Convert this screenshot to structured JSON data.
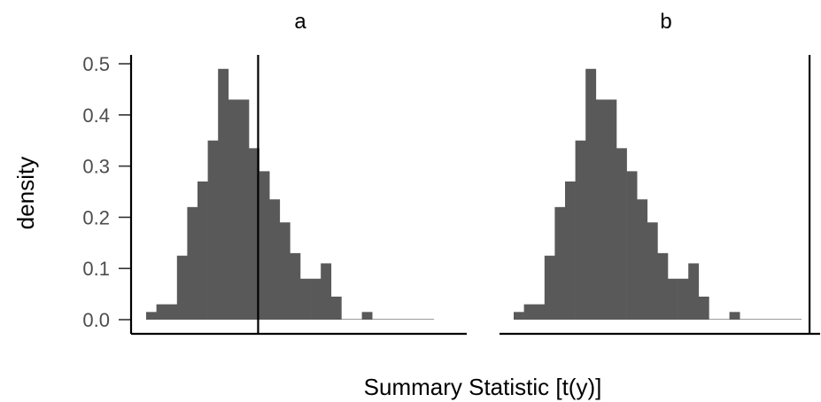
{
  "chart_data": {
    "type": "bar",
    "xlabel": "Summary Statistic [t(y)]",
    "ylabel": "density",
    "ylim": [
      0,
      0.5
    ],
    "yticks": [
      "0.0",
      "0.1",
      "0.2",
      "0.3",
      "0.4",
      "0.5"
    ],
    "bar_color": "#595959",
    "bin_densities": [
      0.015,
      0.03,
      0.03,
      0.125,
      0.22,
      0.27,
      0.35,
      0.49,
      0.43,
      0.43,
      0.335,
      0.29,
      0.235,
      0.19,
      0.13,
      0.08,
      0.08,
      0.11,
      0.045,
      0.0,
      0.0,
      0.015,
      0.0,
      0.0,
      0.0,
      0.0,
      0.0,
      0.0
    ],
    "panels": [
      {
        "title": "a",
        "reference_bin": 10.9
      },
      {
        "title": "b",
        "reference_bin": 28.8
      }
    ]
  }
}
